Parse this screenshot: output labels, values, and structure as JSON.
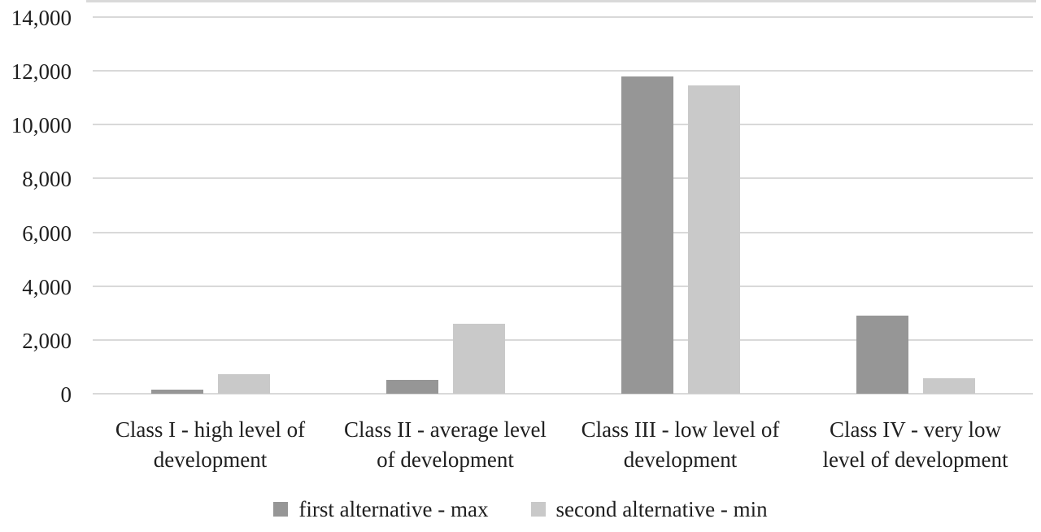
{
  "figure": {
    "background": "#ffffff",
    "text_color": "#1f1f1f",
    "grid_color": "#d9d9d9"
  },
  "chart_data": {
    "type": "bar",
    "title": "",
    "xlabel": "",
    "ylabel": "",
    "categories": [
      "Class I - high level of development",
      "Class II - average level of development",
      "Class III - low level of development",
      "Class IV - very low level of development"
    ],
    "category_lines": [
      [
        "Class I - high level of",
        "development"
      ],
      [
        "Class II - average level",
        "of development"
      ],
      [
        "Class III - low level of",
        "development"
      ],
      [
        "Class IV - very low",
        "level of development"
      ]
    ],
    "series": [
      {
        "name": "first alternative - max",
        "color": "#969696",
        "values": [
          150,
          500,
          11800,
          2900
        ]
      },
      {
        "name": "second alternative - min",
        "color": "#c9c9c9",
        "values": [
          730,
          2600,
          11450,
          560
        ]
      }
    ],
    "ylim": [
      0,
      14000
    ],
    "ytick_step": 2000,
    "ytick_labels": [
      "0",
      "2,000",
      "4,000",
      "6,000",
      "8,000",
      "10,000",
      "12,000",
      "14,000"
    ],
    "grid": true,
    "legend_position": "bottom"
  }
}
